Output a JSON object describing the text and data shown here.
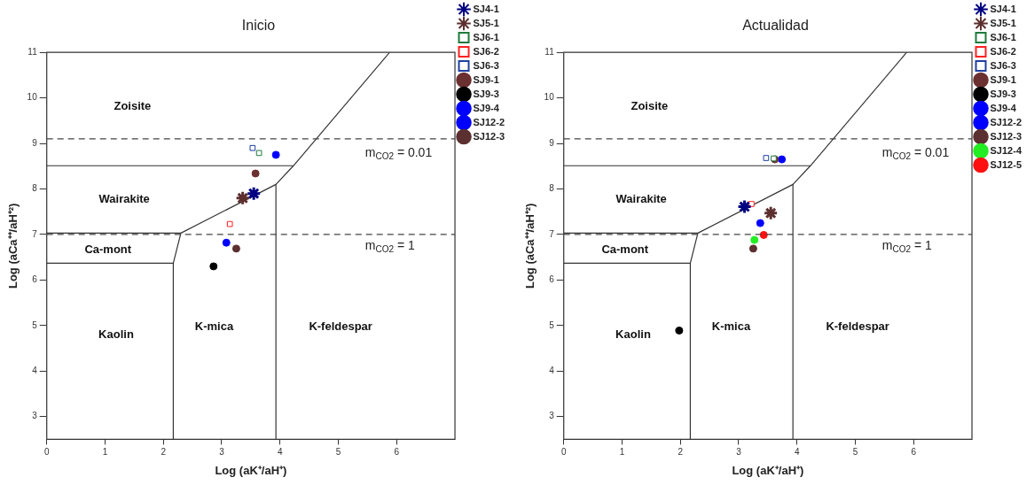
{
  "chart_data": [
    {
      "type": "scatter",
      "title": "Inicio",
      "xlabel": "Log (aK⁺/aH⁺)",
      "ylabel": "Log (aCa⁺⁺/aH⁺²)",
      "xlim": [
        0,
        7
      ],
      "ylim": [
        2.5,
        11
      ],
      "xticks": [
        0,
        1,
        2,
        3,
        4,
        5,
        6
      ],
      "yticks": [
        3,
        4,
        5,
        6,
        7,
        8,
        9,
        10,
        11
      ],
      "grid": false,
      "legend": "right",
      "series": [
        {
          "name": "SJ4-1",
          "color": "#000080",
          "marker": "cross",
          "x": [
            3.55
          ],
          "values": [
            7.9
          ]
        },
        {
          "name": "SJ5-1",
          "color": "#5c2e2e",
          "marker": "cross",
          "x": [
            3.36
          ],
          "values": [
            7.8
          ]
        },
        {
          "name": "SJ6-1",
          "color": "#1e7a3c",
          "marker": "square",
          "x": [
            3.64
          ],
          "values": [
            8.79
          ]
        },
        {
          "name": "SJ6-2",
          "color": "#ff2020",
          "marker": "square",
          "x": [
            3.14
          ],
          "values": [
            7.23
          ]
        },
        {
          "name": "SJ6-3",
          "color": "#1f3f9f",
          "marker": "square",
          "x": [
            3.53
          ],
          "values": [
            8.9
          ]
        },
        {
          "name": "SJ9-1",
          "color": "#6b3030",
          "marker": "circle",
          "x": [
            3.58
          ],
          "values": [
            8.34
          ]
        },
        {
          "name": "SJ9-3",
          "color": "#000000",
          "marker": "circle",
          "x": [
            2.86
          ],
          "values": [
            6.3
          ]
        },
        {
          "name": "SJ9-4",
          "color": "#0000ff",
          "marker": "circle",
          "x": [
            3.93
          ],
          "values": [
            8.75
          ]
        },
        {
          "name": "SJ12-2",
          "color": "#0000ff",
          "marker": "circle",
          "x": [
            3.08
          ],
          "values": [
            6.82
          ]
        },
        {
          "name": "SJ12-3",
          "color": "#5c3030",
          "marker": "circle",
          "x": [
            3.25
          ],
          "values": [
            6.69
          ]
        },
        {
          "type": "line",
          "color": "#333333",
          "marker": "none",
          "x": [
            0,
            4.23,
            5.88
          ],
          "values": [
            8.51,
            8.51,
            11
          ]
        },
        {
          "type": "line",
          "color": "#333333",
          "marker": "none",
          "x": [
            4.23,
            3.93,
            2.3,
            0
          ],
          "values": [
            8.51,
            8.1,
            7.03,
            7.03
          ]
        },
        {
          "type": "line",
          "color": "#333333",
          "marker": "none",
          "x": [
            2.3,
            2.17,
            0
          ],
          "values": [
            7.03,
            6.37,
            6.37
          ]
        },
        {
          "type": "line",
          "color": "#333333",
          "marker": "none",
          "x": [
            2.17,
            2.17
          ],
          "values": [
            6.37,
            2.5
          ]
        },
        {
          "type": "line",
          "color": "#333333",
          "marker": "none",
          "x": [
            3.93,
            3.93
          ],
          "values": [
            8.1,
            2.5
          ]
        }
      ],
      "ref_lines": [
        {
          "axis": "y",
          "value": 9.1,
          "line_style": "dashed",
          "color": "#444444"
        },
        {
          "axis": "y",
          "value": 7,
          "line_style": "dashed",
          "color": "#444444"
        }
      ],
      "annotations": [
        "Zoisite",
        "Wairakite",
        "Ca-mont",
        "Kaolin",
        "K-mica",
        "K-feldespar",
        "m$_{CO2}$ = 0.01",
        "m$_{CO2}$ = 1"
      ]
    },
    {
      "type": "scatter",
      "title": "Actualidad",
      "xlabel": "Log (aK⁺/aH⁺)",
      "ylabel": "Log (aCa⁺⁺/aH⁺²)",
      "xlim": [
        0,
        7
      ],
      "ylim": [
        2.5,
        11
      ],
      "xticks": [
        0,
        1,
        2,
        3,
        4,
        5,
        6
      ],
      "yticks": [
        3,
        4,
        5,
        6,
        7,
        8,
        9,
        10,
        11
      ],
      "grid": false,
      "legend": "right",
      "series": [
        {
          "name": "SJ4-1",
          "color": "#000080",
          "marker": "cross",
          "x": [
            3.1
          ],
          "values": [
            7.61
          ]
        },
        {
          "name": "SJ5-1",
          "color": "#5c2e2e",
          "marker": "cross",
          "x": [
            3.55
          ],
          "values": [
            7.47
          ]
        },
        {
          "name": "SJ6-1",
          "color": "#1e7a3c",
          "marker": "square",
          "x": [
            3.6
          ],
          "values": [
            8.67
          ]
        },
        {
          "name": "SJ6-2",
          "color": "#ff2020",
          "marker": "square",
          "x": [
            3.22
          ],
          "values": [
            7.67
          ]
        },
        {
          "name": "SJ6-3",
          "color": "#1f3f9f",
          "marker": "square",
          "x": [
            3.47
          ],
          "values": [
            8.68
          ]
        },
        {
          "name": "SJ9-1",
          "color": "#6b3030",
          "marker": "circle",
          "x": [
            3.62
          ],
          "values": [
            8.65
          ]
        },
        {
          "name": "SJ9-3",
          "color": "#000000",
          "marker": "circle",
          "x": [
            1.98
          ],
          "values": [
            4.89
          ]
        },
        {
          "name": "SJ9-4",
          "color": "#0000ff",
          "marker": "circle",
          "x": [
            3.74
          ],
          "values": [
            8.65
          ]
        },
        {
          "name": "SJ12-2",
          "color": "#0000ff",
          "marker": "circle",
          "x": [
            3.37
          ],
          "values": [
            7.25
          ]
        },
        {
          "name": "SJ12-3",
          "color": "#5c3030",
          "marker": "circle",
          "x": [
            3.25
          ],
          "values": [
            6.69
          ]
        },
        {
          "name": "SJ12-4",
          "color": "#22ee22",
          "marker": "circle",
          "x": [
            3.27
          ],
          "values": [
            6.88
          ]
        },
        {
          "name": "SJ12-5",
          "color": "#ff1010",
          "marker": "circle",
          "x": [
            3.43
          ],
          "values": [
            6.99
          ]
        },
        {
          "type": "line",
          "color": "#333333",
          "marker": "none",
          "x": [
            0,
            4.23,
            5.88
          ],
          "values": [
            8.51,
            8.51,
            11
          ]
        },
        {
          "type": "line",
          "color": "#333333",
          "marker": "none",
          "x": [
            4.23,
            3.93,
            2.3,
            0
          ],
          "values": [
            8.51,
            8.1,
            7.03,
            7.03
          ]
        },
        {
          "type": "line",
          "color": "#333333",
          "marker": "none",
          "x": [
            2.3,
            2.17,
            0
          ],
          "values": [
            7.03,
            6.37,
            6.37
          ]
        },
        {
          "type": "line",
          "color": "#333333",
          "marker": "none",
          "x": [
            2.17,
            2.17
          ],
          "values": [
            6.37,
            2.5
          ]
        },
        {
          "type": "line",
          "color": "#333333",
          "marker": "none",
          "x": [
            3.93,
            3.93
          ],
          "values": [
            8.1,
            2.5
          ]
        }
      ],
      "ref_lines": [
        {
          "axis": "y",
          "value": 9.1,
          "line_style": "dashed",
          "color": "#444444"
        },
        {
          "axis": "y",
          "value": 7,
          "line_style": "dashed",
          "color": "#444444"
        }
      ],
      "annotations": [
        "Zoisite",
        "Wairakite",
        "Ca-mont",
        "Kaolin",
        "K-mica",
        "K-feldespar",
        "m$_{CO2}$ = 0.01",
        "m$_{CO2}$ = 1"
      ]
    }
  ]
}
